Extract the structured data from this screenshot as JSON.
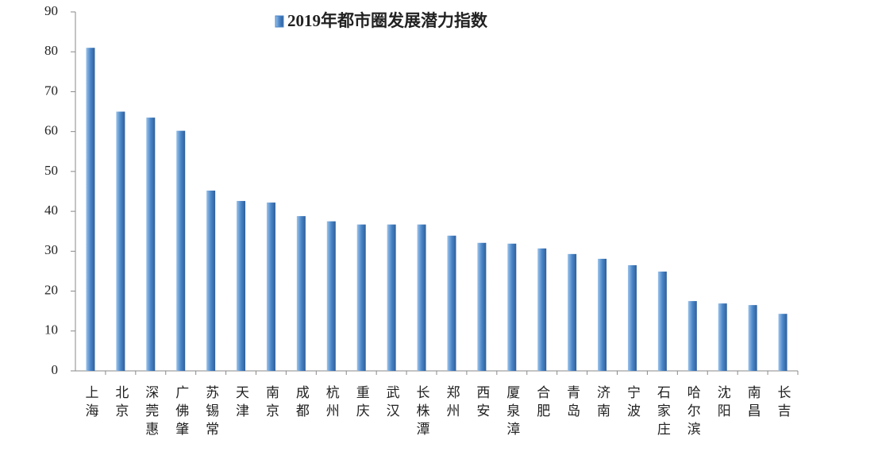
{
  "chart_data": {
    "type": "bar",
    "series": [
      {
        "name": "2019年都市圈发展潜力指数",
        "color": "#4a86c8",
        "values": [
          81,
          65,
          63.5,
          60.2,
          45.2,
          42.6,
          42.2,
          38.8,
          37.5,
          36.7,
          36.7,
          36.7,
          33.9,
          32.1,
          31.9,
          30.7,
          29.3,
          28.1,
          26.5,
          24.9,
          17.5,
          16.9,
          16.5,
          14.3
        ]
      }
    ],
    "categories": [
      "上海",
      "北京",
      "深莞惠",
      "广佛肇",
      "苏锡常",
      "天津",
      "南京",
      "成都",
      "杭州",
      "重庆",
      "武汉",
      "长株潭",
      "郑州",
      "西安",
      "厦泉漳",
      "合肥",
      "青岛",
      "济南",
      "宁波",
      "石家庄",
      "哈尔滨",
      "沈阳",
      "南昌",
      "长吉"
    ],
    "ylim": [
      0,
      90
    ],
    "yticks": [
      0,
      10,
      20,
      30,
      40,
      50,
      60,
      70,
      80,
      90
    ],
    "grid": false,
    "legend": "top"
  }
}
